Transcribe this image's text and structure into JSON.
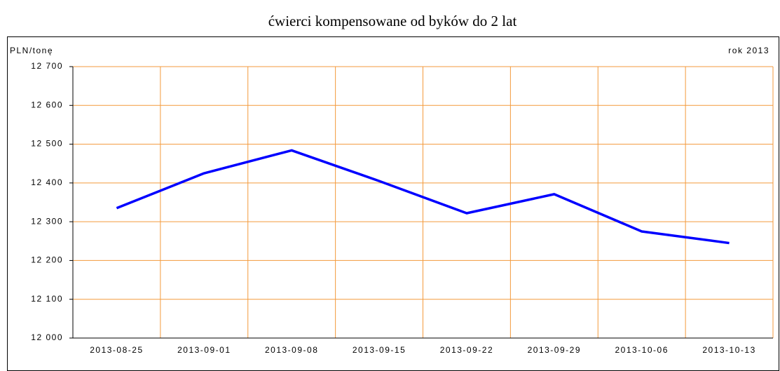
{
  "chart_data": {
    "type": "line",
    "title": "ćwierci kompensowane od byków do 2 lat",
    "y_label": "PLN/tonę",
    "annotation": "rok 2013",
    "categories": [
      "2013-08-25",
      "2013-09-01",
      "2013-09-08",
      "2013-09-15",
      "2013-09-22",
      "2013-09-29",
      "2013-10-06",
      "2013-10-13"
    ],
    "series": [
      {
        "name": "ćwierci kompensowane od byków do 2 lat",
        "color": "#0000ff",
        "values": [
          12335,
          12425,
          12484,
          12405,
          12322,
          12371,
          12275,
          12245
        ]
      }
    ],
    "ylim": [
      12000,
      12700
    ],
    "yticks": [
      {
        "value": 12000,
        "label": "12 000"
      },
      {
        "value": 12100,
        "label": "12 100"
      },
      {
        "value": 12200,
        "label": "12 200"
      },
      {
        "value": 12300,
        "label": "12 300"
      },
      {
        "value": 12400,
        "label": "12 400"
      },
      {
        "value": 12500,
        "label": "12 500"
      },
      {
        "value": 12600,
        "label": "12 600"
      },
      {
        "value": 12700,
        "label": "12 700"
      }
    ],
    "grid": true,
    "grid_color": "#f39a3c"
  }
}
